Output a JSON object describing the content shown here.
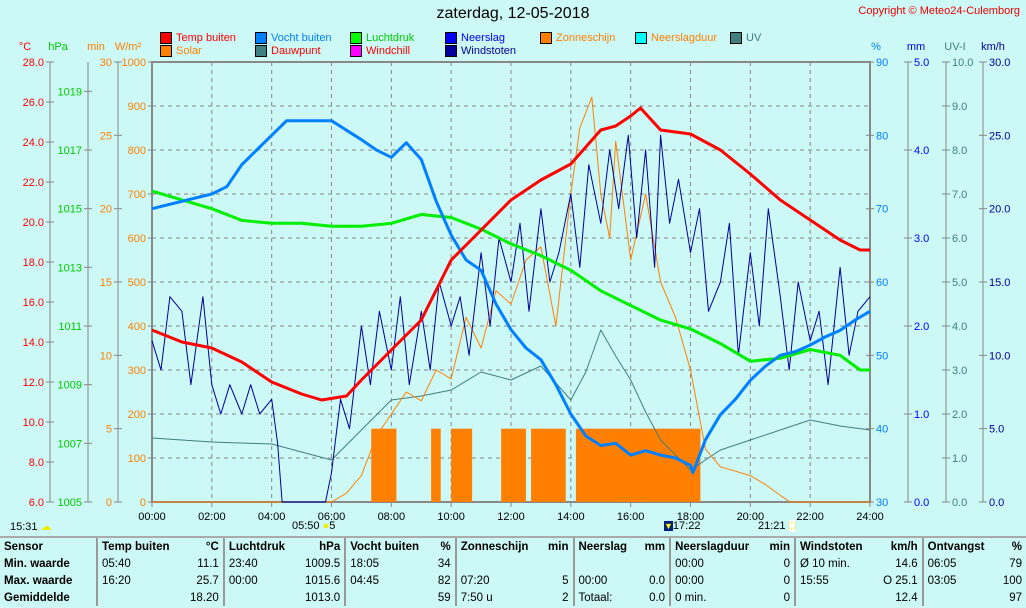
{
  "title": "zaterdag, 12-05-2018",
  "copyright": "Copyright © Meteo24-Culemborg",
  "legend": [
    {
      "label": "Temp buiten",
      "color": "#ff0000",
      "text": "#ff0000"
    },
    {
      "label": "Solar",
      "color": "#ff8000",
      "text": "#ff8000"
    },
    {
      "label": "Vocht buiten",
      "color": "#0080ff",
      "text": "#0080ff"
    },
    {
      "label": "Dauwpunt",
      "color": "#408080",
      "text": "#ff0000"
    },
    {
      "label": "Luchtdruk",
      "color": "#00ff00",
      "text": "#00cc00"
    },
    {
      "label": "Windchill",
      "color": "#ff00ff",
      "text": "#ff0000"
    },
    {
      "label": "Neerslag",
      "color": "#0000ff",
      "text": "#0000ff"
    },
    {
      "label": "Windstoten",
      "color": "#000099",
      "text": "#000099"
    },
    {
      "label": "Zonneschijn",
      "color": "#ff8000",
      "text": "#ff8000"
    },
    {
      "label": "Neerslagduur",
      "color": "#00ffff",
      "text": "#ff8000"
    },
    {
      "label": "UV",
      "color": "#408080",
      "text": "#408080"
    }
  ],
  "events": {
    "moonrise": "15:31",
    "sunrise": "05:50",
    "sunrise_val": "5",
    "sunset_icon_time": "17:22",
    "sunset": "21:21"
  },
  "chart_data": {
    "type": "line",
    "title": "zaterdag, 12-05-2018",
    "x_ticks": [
      "00:00",
      "02:00",
      "04:00",
      "06:00",
      "08:00",
      "10:00",
      "12:00",
      "14:00",
      "16:00",
      "18:00",
      "20:00",
      "22:00",
      "24:00"
    ],
    "xlim": [
      0,
      24
    ],
    "axes": {
      "temp": {
        "unit": "°C",
        "range": [
          6,
          28
        ],
        "ticks": [
          "6.0",
          "8.0",
          "10.0",
          "12.0",
          "14.0",
          "16.0",
          "18.0",
          "20.0",
          "22.0",
          "24.0",
          "26.0",
          "28.0"
        ],
        "color": "#ff0000"
      },
      "pressure": {
        "unit": "hPa",
        "range": [
          1005,
          1020
        ],
        "ticks": [
          "1005",
          "1007",
          "1009",
          "1011",
          "1013",
          "1015",
          "1017",
          "1019"
        ],
        "color": "#00cc00"
      },
      "minutes": {
        "unit": "min",
        "range": [
          0,
          30
        ],
        "ticks": [
          "0",
          "5",
          "10",
          "15",
          "20",
          "25",
          "30"
        ],
        "color": "#ff8000"
      },
      "solar": {
        "unit": "W/m²",
        "range": [
          0,
          1000
        ],
        "ticks": [
          "0",
          "100",
          "200",
          "300",
          "400",
          "500",
          "600",
          "700",
          "800",
          "900",
          "1000"
        ],
        "color": "#ff8000"
      },
      "humidity": {
        "unit": "%",
        "range": [
          30,
          90
        ],
        "ticks": [
          "30",
          "40",
          "50",
          "60",
          "70",
          "80",
          "90"
        ],
        "color": "#0080ff"
      },
      "rain": {
        "unit": "mm",
        "range": [
          0,
          5
        ],
        "ticks": [
          "0.0",
          "1.0",
          "2.0",
          "3.0",
          "4.0",
          "5.0"
        ],
        "color": "#0000ff"
      },
      "uv": {
        "unit": "UV-I",
        "range": [
          0,
          10
        ],
        "ticks": [
          "0.0",
          "1.0",
          "2.0",
          "3.0",
          "4.0",
          "5.0",
          "6.0",
          "7.0",
          "8.0",
          "9.0",
          "10.0"
        ],
        "color": "#408080"
      },
      "wind": {
        "unit": "km/h",
        "range": [
          0,
          30
        ],
        "ticks": [
          "0.0",
          "5.0",
          "10.0",
          "15.0",
          "20.0",
          "25.0",
          "30.0"
        ],
        "color": "#000099"
      }
    },
    "sunshine_bars": {
      "axis": "minutes",
      "color": "#ff8000",
      "intervals": [
        [
          7.33,
          8.17,
          5
        ],
        [
          9.33,
          9.65,
          5
        ],
        [
          10.0,
          10.7,
          5
        ],
        [
          11.67,
          12.5,
          5
        ],
        [
          12.67,
          13.83,
          5
        ],
        [
          14.17,
          18.33,
          5
        ]
      ]
    },
    "series": [
      {
        "name": "Temp buiten",
        "axis": "temp",
        "color": "#ff0000",
        "width": 3,
        "x": [
          0,
          1,
          2,
          3,
          4,
          5,
          5.67,
          6.5,
          7,
          8,
          9,
          10,
          11,
          12,
          13,
          14,
          15,
          15.5,
          16,
          16.33,
          17,
          18,
          19,
          20,
          21,
          22,
          23,
          23.67,
          24
        ],
        "y": [
          14.6,
          14.0,
          13.7,
          13.0,
          12.0,
          11.4,
          11.1,
          11.3,
          12.1,
          13.6,
          15.1,
          18.1,
          19.6,
          21.1,
          22.1,
          22.9,
          24.6,
          24.8,
          25.3,
          25.7,
          24.6,
          24.4,
          23.6,
          22.4,
          21.1,
          20.1,
          19.1,
          18.6,
          18.6
        ]
      },
      {
        "name": "Solar",
        "axis": "solar",
        "color": "#ff8000",
        "width": 1,
        "x": [
          0,
          6,
          6.5,
          7,
          7.5,
          8,
          8.5,
          9,
          9.5,
          10,
          10.5,
          11,
          11.5,
          12,
          12.5,
          13,
          13.5,
          14,
          14.3,
          14.7,
          15,
          15.3,
          15.5,
          16,
          16.5,
          17,
          17.5,
          18,
          18.5,
          19,
          19.5,
          20,
          20.5,
          21,
          21.33,
          24
        ],
        "y": [
          0,
          0,
          20,
          60,
          150,
          200,
          250,
          230,
          300,
          280,
          420,
          350,
          480,
          450,
          550,
          580,
          400,
          700,
          850,
          920,
          700,
          600,
          820,
          550,
          700,
          500,
          420,
          300,
          120,
          80,
          70,
          60,
          40,
          15,
          0,
          0
        ]
      },
      {
        "name": "Vocht buiten",
        "axis": "humidity",
        "color": "#0080ff",
        "width": 3,
        "x": [
          0,
          1,
          2,
          2.5,
          3,
          3.5,
          4,
          4.5,
          5,
          6,
          7,
          7.5,
          8,
          8.5,
          9,
          9.5,
          10,
          10.5,
          11,
          11.5,
          12,
          12.5,
          13,
          13.5,
          14,
          14.5,
          15,
          15.5,
          16,
          16.5,
          17,
          17.5,
          18,
          18.08,
          18.5,
          19,
          19.5,
          20,
          20.5,
          21,
          21.5,
          22,
          22.5,
          23,
          23.5,
          24
        ],
        "y": [
          70,
          71,
          72,
          73,
          76,
          78,
          80,
          82,
          82,
          82,
          79.4,
          78,
          77,
          79,
          76.7,
          71,
          66.4,
          63,
          61.6,
          57,
          53.5,
          51,
          49.4,
          46,
          42,
          39,
          37.7,
          38,
          36.4,
          37,
          36.4,
          36,
          35,
          34,
          38.5,
          41.9,
          44,
          46.6,
          48.5,
          50,
          50.5,
          51.4,
          52.5,
          53.4,
          54.8,
          56
        ]
      },
      {
        "name": "Dauwpunt",
        "axis": "temp",
        "color": "#408080",
        "width": 1,
        "x": [
          0,
          2,
          4,
          5,
          6,
          7,
          8,
          9,
          10,
          11,
          12,
          13,
          14,
          14.5,
          15,
          15.5,
          16,
          16.5,
          17,
          18,
          19,
          20,
          21,
          22,
          23,
          24
        ],
        "y": [
          9.2,
          9.0,
          8.9,
          8.5,
          8.1,
          9.6,
          11.1,
          11.3,
          11.6,
          12.5,
          12.1,
          12.8,
          11.1,
          12.5,
          14.6,
          13.3,
          12.1,
          10.5,
          9.1,
          7.6,
          8.6,
          9.1,
          9.6,
          10.1,
          9.8,
          9.6
        ]
      },
      {
        "name": "Luchtdruk",
        "axis": "pressure",
        "color": "#00ee00",
        "width": 3,
        "x": [
          0,
          1,
          2,
          3,
          4,
          5,
          6,
          7,
          8,
          9,
          10,
          11,
          12,
          13,
          14,
          15,
          16,
          17,
          18,
          19,
          20,
          21,
          22,
          23,
          23.67,
          24
        ],
        "y": [
          1015.6,
          1015.3,
          1015.0,
          1014.6,
          1014.5,
          1014.5,
          1014.4,
          1014.4,
          1014.5,
          1014.8,
          1014.7,
          1014.3,
          1013.8,
          1013.4,
          1012.9,
          1012.2,
          1011.7,
          1011.2,
          1010.9,
          1010.4,
          1009.8,
          1009.9,
          1010.2,
          1010.0,
          1009.5,
          1009.5
        ]
      },
      {
        "name": "Windstoten",
        "axis": "wind",
        "color": "#000099",
        "width": 1,
        "x": [
          0,
          0.3,
          0.6,
          1,
          1.3,
          1.7,
          2,
          2.3,
          2.6,
          3,
          3.3,
          3.6,
          4,
          4.2,
          4.35,
          5,
          5.8,
          6,
          6.3,
          6.6,
          7,
          7.3,
          7.6,
          8,
          8.3,
          8.6,
          9,
          9.3,
          9.6,
          10,
          10.3,
          10.6,
          11,
          11.3,
          11.6,
          12,
          12.3,
          12.6,
          13,
          13.3,
          13.6,
          14,
          14.3,
          14.6,
          15,
          15.3,
          15.6,
          15.92,
          16.2,
          16.5,
          16.8,
          17,
          17.3,
          17.6,
          18,
          18.3,
          18.6,
          19,
          19.3,
          19.6,
          20,
          20.3,
          20.6,
          21,
          21.3,
          21.6,
          22,
          22.3,
          22.6,
          23,
          23.3,
          23.6,
          24
        ],
        "y": [
          11,
          9,
          14,
          13,
          8,
          14,
          8,
          6,
          8,
          6,
          8,
          6,
          7,
          4,
          0,
          0,
          0,
          2,
          7,
          5,
          12,
          8,
          13,
          9,
          14,
          8,
          13,
          9,
          15,
          12,
          14,
          10,
          17,
          12,
          18,
          15,
          19,
          13,
          20,
          15,
          17,
          21,
          16,
          23,
          19,
          24,
          20,
          25,
          18,
          24,
          16,
          25,
          19,
          22,
          17,
          20,
          13,
          15,
          19,
          10,
          17,
          12,
          20,
          14,
          9,
          15,
          11,
          13,
          8,
          16,
          10,
          13,
          14
        ]
      }
    ]
  },
  "table": {
    "headers": [
      [
        "Sensor",
        ""
      ],
      [
        "Temp buiten",
        "°C"
      ],
      [
        "Luchtdruk",
        "hPa"
      ],
      [
        "Vocht buiten",
        "%"
      ],
      [
        "Zonneschijn",
        "min"
      ],
      [
        "Neerslag",
        "mm"
      ],
      [
        "Neerslagduur",
        "min"
      ],
      [
        "Windstoten",
        "km/h"
      ],
      [
        "Ontvangst",
        "%"
      ]
    ],
    "rows": [
      {
        "label": "Min. waarde",
        "cells": [
          [
            "05:40",
            "11.1"
          ],
          [
            "23:40",
            "1009.5"
          ],
          [
            "18:05",
            "34"
          ],
          [
            "",
            ""
          ],
          [
            "",
            ""
          ],
          [
            "00:00",
            "0"
          ],
          [
            "Ø 10 min.",
            "14.6"
          ],
          [
            "06:05",
            "79"
          ]
        ]
      },
      {
        "label": "Max. waarde",
        "cells": [
          [
            "16:20",
            "25.7"
          ],
          [
            "00:00",
            "1015.6"
          ],
          [
            "04:45",
            "82"
          ],
          [
            "07:20",
            "5"
          ],
          [
            "00:00",
            "0.0"
          ],
          [
            "00:00",
            "0"
          ],
          [
            "15:55",
            "O 25.1"
          ],
          [
            "03:05",
            "100"
          ]
        ]
      },
      {
        "label": "Gemiddelde",
        "cells": [
          [
            "",
            "18.20"
          ],
          [
            "",
            "1013.0"
          ],
          [
            "",
            "59"
          ],
          [
            "7:50 u",
            "2"
          ],
          [
            "Totaal:",
            "0.0"
          ],
          [
            "0 min.",
            "0"
          ],
          [
            "",
            "12.4"
          ],
          [
            "",
            "97"
          ]
        ]
      }
    ]
  }
}
